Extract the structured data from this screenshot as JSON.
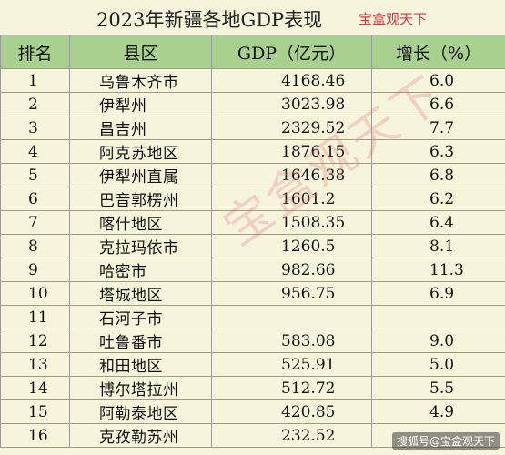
{
  "title": "2023年新疆各地GDP表现",
  "brand": "宝盒观天下",
  "watermark": "宝盒观天下",
  "footer_tag": "搜狐号@宝盒观天下",
  "columns": [
    "排名",
    "县区",
    "GDP（亿元）",
    "增长（%）"
  ],
  "rows": [
    {
      "rank": "1",
      "county": "乌鲁木齐市",
      "gdp": "4168.46",
      "growth": "6.0"
    },
    {
      "rank": "2",
      "county": "伊犁州",
      "gdp": "3023.98",
      "growth": "6.6"
    },
    {
      "rank": "3",
      "county": "昌吉州",
      "gdp": "2329.52",
      "growth": "7.7"
    },
    {
      "rank": "4",
      "county": "阿克苏地区",
      "gdp": "1876.15",
      "growth": "6.3"
    },
    {
      "rank": "5",
      "county": "伊犁州直属",
      "gdp": "1646.38",
      "growth": "6.8"
    },
    {
      "rank": "6",
      "county": "巴音郭楞州",
      "gdp": "1601.2",
      "growth": "6.2"
    },
    {
      "rank": "7",
      "county": "喀什地区",
      "gdp": "1508.35",
      "growth": "6.4"
    },
    {
      "rank": "8",
      "county": "克拉玛依市",
      "gdp": "1260.5",
      "growth": "8.1"
    },
    {
      "rank": "9",
      "county": "哈密市",
      "gdp": "982.66",
      "growth": "11.3"
    },
    {
      "rank": "10",
      "county": "塔城地区",
      "gdp": "956.75",
      "growth": "6.9"
    },
    {
      "rank": "11",
      "county": "石河子市",
      "gdp": "",
      "growth": ""
    },
    {
      "rank": "12",
      "county": "吐鲁番市",
      "gdp": "583.08",
      "growth": "9.0"
    },
    {
      "rank": "13",
      "county": "和田地区",
      "gdp": "525.91",
      "growth": "5.0"
    },
    {
      "rank": "14",
      "county": "博尔塔拉州",
      "gdp": "512.72",
      "growth": "5.5"
    },
    {
      "rank": "15",
      "county": "阿勒泰地区",
      "gdp": "420.85",
      "growth": "4.9"
    },
    {
      "rank": "16",
      "county": "克孜勒苏州",
      "gdp": "232.52",
      "growth": ""
    }
  ]
}
